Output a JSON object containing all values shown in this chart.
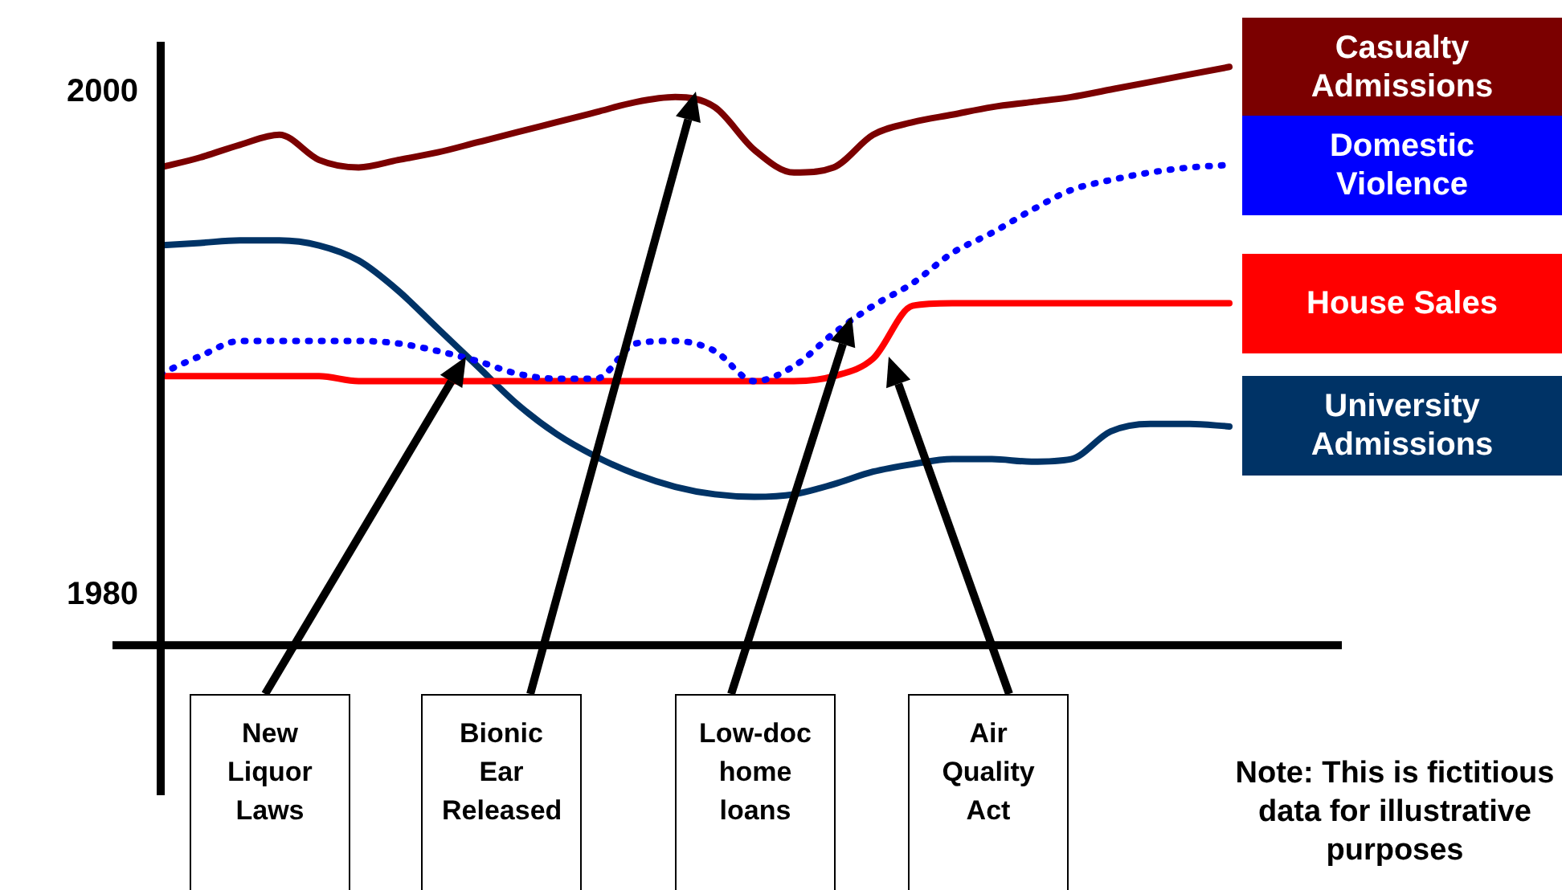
{
  "chart_data": {
    "type": "line",
    "categories": [
      null,
      null,
      null,
      null,
      null,
      null,
      null,
      null,
      null,
      null,
      null,
      null,
      null,
      null,
      null,
      null,
      null,
      null,
      null,
      null,
      null,
      null,
      null,
      null,
      null,
      null,
      null,
      null
    ],
    "ylim": [
      1978,
      2002
    ],
    "yticks": [
      1980,
      2000
    ],
    "grid": false,
    "marker": "none",
    "series": [
      {
        "name": "Casualty Admissions",
        "color": "#7b0000",
        "line_style": "solid",
        "values": [
          1997.0,
          1997.4,
          1997.9,
          1998.3,
          1997.3,
          1997.0,
          1997.3,
          1997.6,
          1998.0,
          1998.4,
          1998.8,
          1999.2,
          1999.6,
          1999.8,
          1999.4,
          1997.7,
          1996.8,
          1997.0,
          1998.3,
          1998.8,
          1999.1,
          1999.4,
          1999.6,
          1999.8,
          2000.1,
          2000.4,
          2000.7,
          2001.0
        ]
      },
      {
        "name": "Domestic Violence",
        "color": "#0000ff",
        "line_style": "dotted",
        "values": [
          1988.8,
          1989.5,
          1990.1,
          1990.1,
          1990.1,
          1990.1,
          1990.0,
          1989.7,
          1989.3,
          1988.8,
          1988.6,
          1988.6,
          1990.0,
          1990.1,
          1989.7,
          1988.5,
          1989.1,
          1990.4,
          1991.5,
          1992.4,
          1993.6,
          1994.4,
          1995.3,
          1996.1,
          1996.5,
          1996.8,
          1997.0,
          1997.1
        ]
      },
      {
        "name": "House Sales",
        "color": "#ff0000",
        "line_style": "solid",
        "values": [
          1988.7,
          1988.7,
          1988.7,
          1988.7,
          1988.7,
          1988.5,
          1988.5,
          1988.5,
          1988.5,
          1988.5,
          1988.5,
          1988.5,
          1988.5,
          1988.5,
          1988.5,
          1988.5,
          1988.5,
          1988.7,
          1989.4,
          1991.5,
          1991.6,
          1991.6,
          1991.6,
          1991.6,
          1991.6,
          1991.6,
          1991.6,
          1991.6
        ]
      },
      {
        "name": "University Admissions",
        "color": "#003366",
        "line_style": "solid",
        "values": [
          1993.9,
          1994.0,
          1994.1,
          1994.1,
          1993.9,
          1993.3,
          1992.1,
          1990.6,
          1989.1,
          1987.6,
          1986.4,
          1985.5,
          1984.8,
          1984.3,
          1984.0,
          1983.9,
          1984.0,
          1984.4,
          1984.9,
          1985.2,
          1985.4,
          1985.4,
          1985.3,
          1985.4,
          1986.5,
          1986.8,
          1986.8,
          1986.7
        ]
      }
    ],
    "annotations": [
      "New Liquor Laws",
      "Bionic Ear Released",
      "Low-doc home loans",
      "Air Quality Act",
      "Note: This is fictitious data for illustrative purposes"
    ]
  }
}
